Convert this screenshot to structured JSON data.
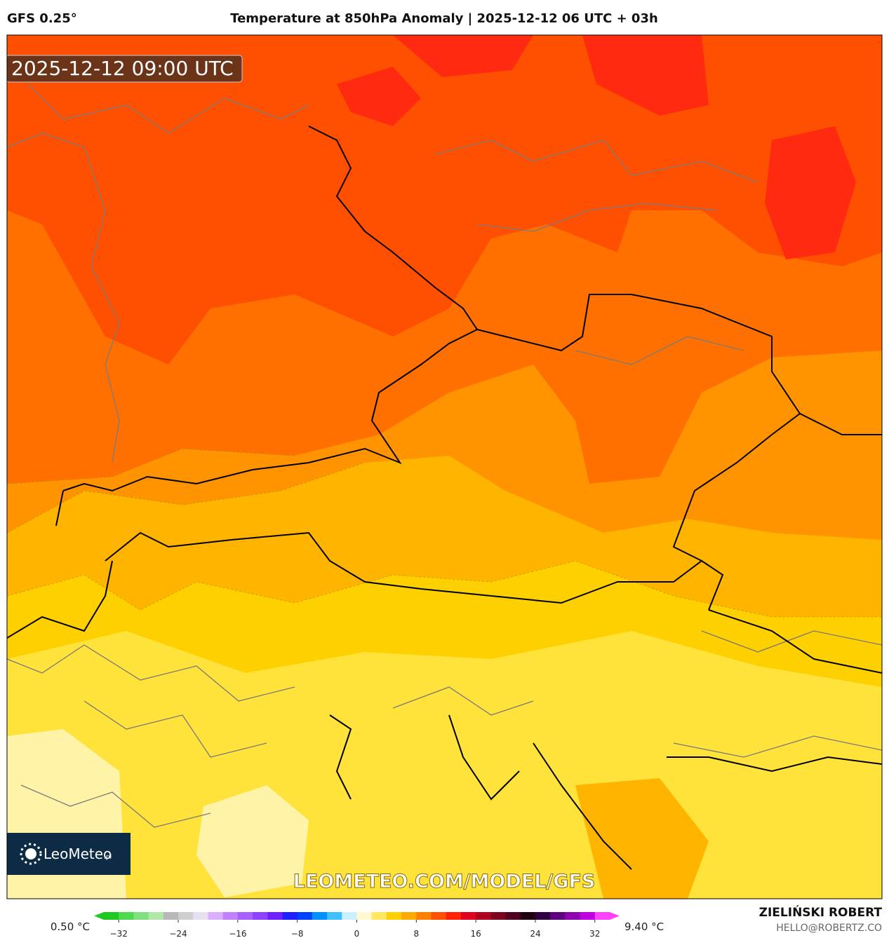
{
  "header": {
    "model": "GFS 0.25°",
    "title": "Temperature at 850hPa Anomaly | 2025-12-12 06 UTC + 03h"
  },
  "map": {
    "timestamp": "2025-12-12 09:00 UTC",
    "logo": {
      "brand": "LeoMeteo",
      "suffix": ".pl"
    },
    "watermark": "LEOMETEO.COM/MODEL/GFS"
  },
  "colorbar": {
    "min_label": "0.50 °C",
    "max_label": "9.40 °C",
    "range": [
      -34,
      34
    ],
    "ticks": [
      {
        "value": -32,
        "label": "−32"
      },
      {
        "value": -24,
        "label": "−24"
      },
      {
        "value": -16,
        "label": "−16"
      },
      {
        "value": -8,
        "label": "−8"
      },
      0,
      8,
      16,
      24,
      32
    ],
    "colors": [
      "#1ec81e",
      "#50d850",
      "#80e080",
      "#b0e8a8",
      "#b8b8b8",
      "#cfcfcf",
      "#e6e0f0",
      "#d8b0ff",
      "#c080ff",
      "#a860ff",
      "#9040ff",
      "#7020ff",
      "#2020ff",
      "#0040ff",
      "#0090ff",
      "#40c0ff",
      "#c8f0ff",
      "#fff8d0",
      "#ffe860",
      "#ffd000",
      "#ffa800",
      "#ff8000",
      "#ff5000",
      "#ff2000",
      "#e00020",
      "#b00020",
      "#800020",
      "#500020",
      "#200010",
      "#300040",
      "#600080",
      "#9000b0",
      "#c000e0",
      "#ff40ff"
    ]
  },
  "footer": {
    "author": "ZIELIŃSKI ROBERT",
    "email": "HELLO@ROBERTZ.CO"
  }
}
